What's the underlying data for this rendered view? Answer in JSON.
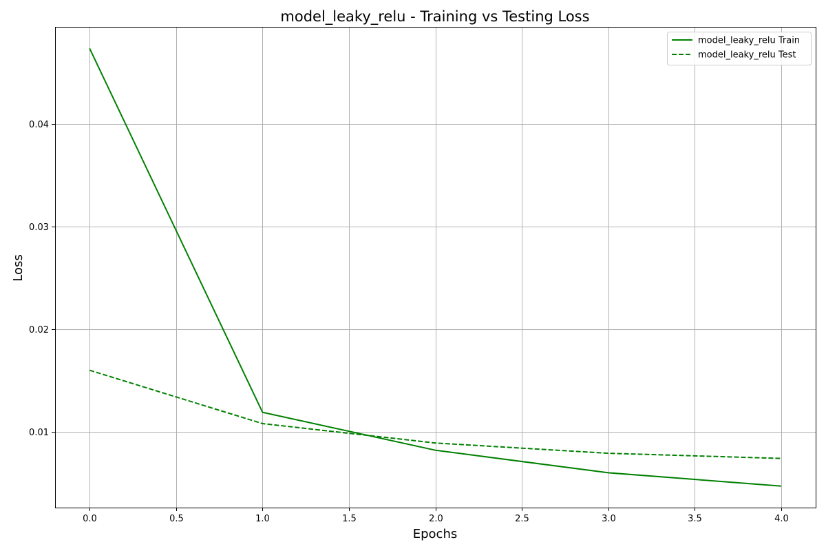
{
  "chart_data": {
    "type": "line",
    "title": "model_leaky_relu - Training vs Testing Loss",
    "xlabel": "Epochs",
    "ylabel": "Loss",
    "xlim": [
      -0.2,
      4.2
    ],
    "ylim": [
      0.0026,
      0.0495
    ],
    "xticks": [
      0.0,
      0.5,
      1.0,
      1.5,
      2.0,
      2.5,
      3.0,
      3.5,
      4.0
    ],
    "xtick_labels": [
      "0.0",
      "0.5",
      "1.0",
      "1.5",
      "2.0",
      "2.5",
      "3.0",
      "3.5",
      "4.0"
    ],
    "yticks": [
      0.01,
      0.02,
      0.03,
      0.04
    ],
    "ytick_labels": [
      "0.01",
      "0.02",
      "0.03",
      "0.04"
    ],
    "grid": true,
    "legend_position": "top-right",
    "series": [
      {
        "name": "model_leaky_relu Train",
        "color": "#008000",
        "style": "solid",
        "x": [
          0,
          1,
          2,
          3,
          4
        ],
        "y": [
          0.0474,
          0.0119,
          0.0082,
          0.006,
          0.0047
        ]
      },
      {
        "name": "model_leaky_relu Test",
        "color": "#008000",
        "style": "dashed",
        "x": [
          0,
          1,
          2,
          3,
          4
        ],
        "y": [
          0.016,
          0.0108,
          0.0089,
          0.0079,
          0.0074
        ]
      }
    ]
  }
}
